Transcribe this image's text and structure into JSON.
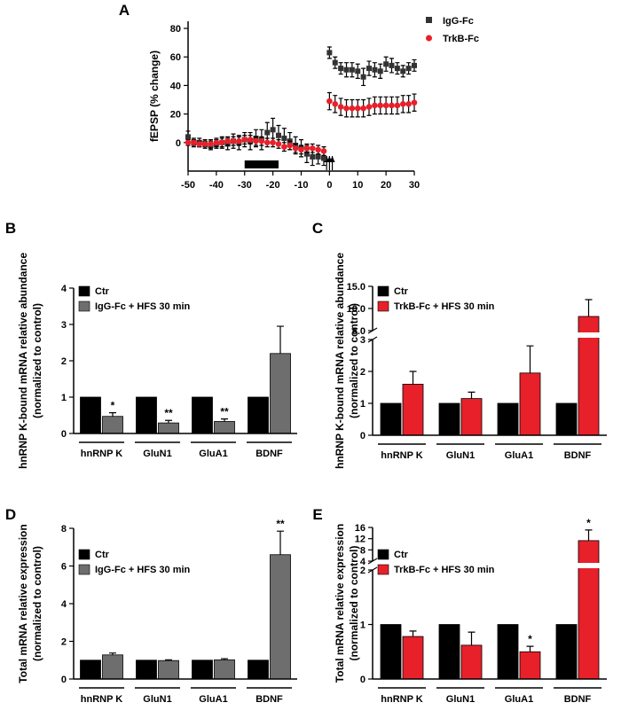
{
  "chart_data": [
    {
      "panel": "A",
      "type": "scatter",
      "ylabel": "fEPSP (% change)",
      "xlim": [
        -50,
        30
      ],
      "ylim": [
        -20,
        85
      ],
      "xticks": [
        -50,
        -40,
        -30,
        -20,
        -10,
        0,
        10,
        20,
        30
      ],
      "yticks": [
        0,
        20,
        40,
        60,
        80
      ],
      "legend_position": "top-right",
      "bar_annotation": {
        "x_start": -30,
        "x_end": -18
      },
      "arrows_at": [
        -1,
        0,
        1
      ],
      "series": [
        {
          "name": "IgG-Fc",
          "color": "#333333",
          "marker": "square",
          "x": [
            -50,
            -48,
            -46,
            -44,
            -42,
            -40,
            -38,
            -36,
            -34,
            -32,
            -30,
            -28,
            -26,
            -24,
            -22,
            -20,
            -18,
            -16,
            -14,
            -12,
            -10,
            -8,
            -6,
            -4,
            -2,
            0,
            2,
            4,
            6,
            8,
            10,
            12,
            14,
            16,
            18,
            20,
            22,
            24,
            26,
            28,
            30
          ],
          "y": [
            4,
            0,
            0,
            -1,
            -2,
            -1,
            0,
            -1,
            1,
            0,
            2,
            1,
            3,
            2,
            7,
            9,
            5,
            3,
            1,
            -2,
            -4,
            -8,
            -10,
            -10,
            -11,
            63,
            56,
            52,
            51,
            51,
            50,
            46,
            52,
            51,
            50,
            55,
            54,
            52,
            50,
            52,
            54
          ],
          "err": [
            4,
            3,
            3,
            3,
            3,
            3,
            4,
            4,
            5,
            5,
            5,
            6,
            6,
            7,
            7,
            8,
            7,
            7,
            6,
            6,
            6,
            6,
            6,
            5,
            5,
            4,
            4,
            4,
            5,
            5,
            5,
            6,
            5,
            5,
            5,
            5,
            5,
            4,
            4,
            4,
            4
          ]
        },
        {
          "name": "TrkB-Fc",
          "color": "#e8202a",
          "marker": "circle",
          "x": [
            -50,
            -48,
            -46,
            -44,
            -42,
            -40,
            -38,
            -36,
            -34,
            -32,
            -30,
            -28,
            -26,
            -24,
            -22,
            -20,
            -18,
            -16,
            -14,
            -12,
            -10,
            -8,
            -6,
            -4,
            -2,
            0,
            2,
            4,
            6,
            8,
            10,
            12,
            14,
            16,
            18,
            20,
            22,
            24,
            26,
            28,
            30
          ],
          "y": [
            0,
            0,
            -1,
            -1,
            -1,
            0,
            0,
            1,
            1,
            1,
            2,
            2,
            1,
            1,
            0,
            0,
            -1,
            -3,
            -2,
            -4,
            -5,
            -4,
            -4,
            -5,
            -6,
            29,
            27,
            25,
            24,
            24,
            24,
            24,
            25,
            26,
            26,
            26,
            26,
            26,
            27,
            27,
            28
          ],
          "err": [
            2,
            2,
            2,
            2,
            3,
            3,
            3,
            3,
            3,
            3,
            3,
            3,
            3,
            3,
            3,
            3,
            3,
            3,
            3,
            3,
            3,
            3,
            3,
            3,
            3,
            6,
            6,
            6,
            6,
            6,
            6,
            6,
            6,
            6,
            6,
            6,
            6,
            6,
            6,
            6,
            6
          ]
        }
      ]
    },
    {
      "panel": "B",
      "type": "bar",
      "ylabel": "hnRNP K-bound mRNA relative abundance",
      "ylabel2": "(normalized to control)",
      "ylim": [
        0,
        4
      ],
      "yticks": [
        0,
        1,
        2,
        3,
        4
      ],
      "categories": [
        "hnRNP K",
        "GluN1",
        "GluA1",
        "BDNF"
      ],
      "series": [
        {
          "name": "Ctr",
          "color": "#000000",
          "values": [
            1,
            1,
            1,
            1
          ],
          "err": [
            0,
            0,
            0,
            0
          ]
        },
        {
          "name": "IgG-Fc + HFS 30 min",
          "color": "#6e6e6e",
          "values": [
            0.47,
            0.29,
            0.33,
            2.2
          ],
          "err": [
            0.1,
            0.07,
            0.07,
            0.75
          ]
        }
      ],
      "annotations": [
        "*",
        "**",
        "**",
        ""
      ]
    },
    {
      "panel": "C",
      "type": "bar",
      "ylabel": "hnRNP K-bound mRNA relative abundance",
      "ylabel2": "(normalized to control)",
      "ylim": [
        0,
        15
      ],
      "axis_break": [
        3,
        5
      ],
      "ytick_labels": [
        "0",
        "1",
        "2",
        "3",
        "5.0",
        "10.0",
        "15.0"
      ],
      "categories": [
        "hnRNP K",
        "GluN1",
        "GluA1",
        "BDNF"
      ],
      "series": [
        {
          "name": "Ctr",
          "color": "#000000",
          "values": [
            1,
            1,
            1,
            1
          ],
          "err": [
            0,
            0,
            0,
            0
          ]
        },
        {
          "name": "TrkB-Fc + HFS 30 min",
          "color": "#e8202a",
          "values": [
            1.6,
            1.15,
            1.95,
            8.2
          ],
          "err": [
            0.4,
            0.2,
            0.85,
            3.8
          ]
        }
      ],
      "annotations": [
        "",
        "",
        "",
        ""
      ]
    },
    {
      "panel": "D",
      "type": "bar",
      "ylabel": "Total mRNA relative expression",
      "ylabel2": "(normalized to control)",
      "ylim": [
        0,
        8
      ],
      "yticks": [
        0,
        2,
        4,
        6,
        8
      ],
      "categories": [
        "hnRNP K",
        "GluN1",
        "GluA1",
        "BDNF"
      ],
      "series": [
        {
          "name": "Ctr",
          "color": "#000000",
          "values": [
            1,
            1,
            1,
            1
          ],
          "err": [
            0,
            0,
            0,
            0
          ]
        },
        {
          "name": "IgG-Fc + HFS 30 min",
          "color": "#6e6e6e",
          "values": [
            1.28,
            0.98,
            1.02,
            6.6
          ],
          "err": [
            0.1,
            0.04,
            0.06,
            1.25
          ]
        }
      ],
      "annotations": [
        "",
        "",
        "",
        "**"
      ]
    },
    {
      "panel": "E",
      "type": "bar",
      "ylabel": "Total mRNA relative expression",
      "ylabel2": "(normalized to control)",
      "ylim": [
        0,
        16
      ],
      "axis_break": [
        2,
        4
      ],
      "ytick_labels": [
        "0",
        "1",
        "2",
        "4",
        "8",
        "12",
        "16"
      ],
      "categories": [
        "hnRNP K",
        "GluN1",
        "GluA1",
        "BDNF"
      ],
      "series": [
        {
          "name": "Ctr",
          "color": "#000000",
          "values": [
            1,
            1,
            1,
            1
          ],
          "err": [
            0,
            0,
            0,
            0
          ]
        },
        {
          "name": "TrkB-Fc + HFS 30 min",
          "color": "#e8202a",
          "values": [
            0.78,
            0.62,
            0.5,
            11.3
          ],
          "err": [
            0.1,
            0.24,
            0.1,
            3.8
          ]
        }
      ],
      "annotations": [
        "",
        "",
        "*",
        "*"
      ]
    }
  ]
}
